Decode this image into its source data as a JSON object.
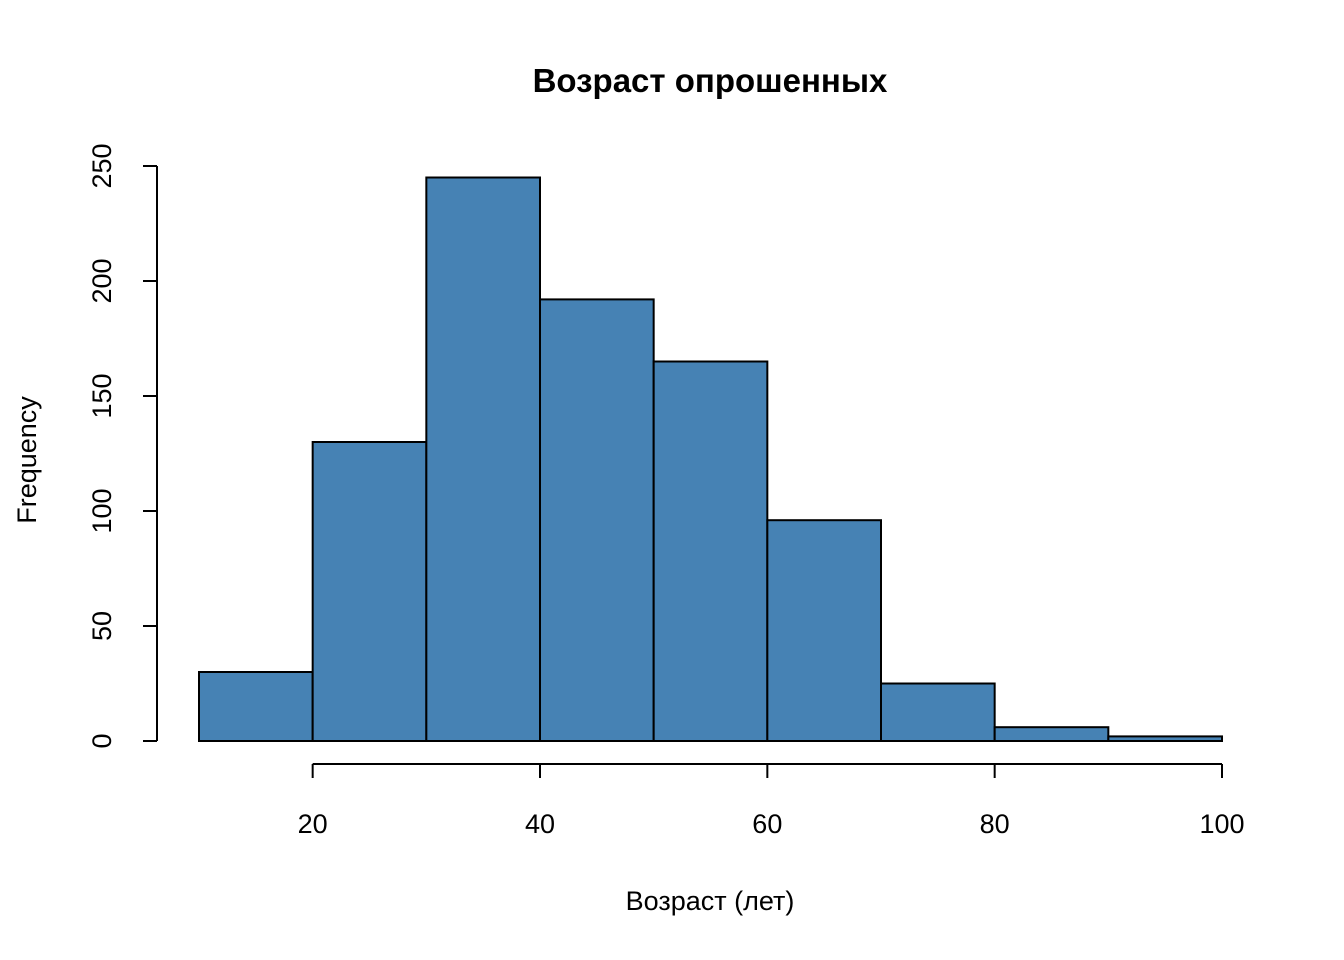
{
  "chart_data": {
    "type": "bar",
    "title": "Возраст опрошенных",
    "xlabel": "Возраст (лет)",
    "ylabel": "Frequency",
    "bins": [
      {
        "start": 10,
        "end": 20,
        "value": 30
      },
      {
        "start": 20,
        "end": 30,
        "value": 130
      },
      {
        "start": 30,
        "end": 40,
        "value": 245
      },
      {
        "start": 40,
        "end": 50,
        "value": 192
      },
      {
        "start": 50,
        "end": 60,
        "value": 165
      },
      {
        "start": 60,
        "end": 70,
        "value": 96
      },
      {
        "start": 70,
        "end": 80,
        "value": 25
      },
      {
        "start": 80,
        "end": 90,
        "value": 6
      },
      {
        "start": 90,
        "end": 100,
        "value": 2
      }
    ],
    "x_ticks": [
      20,
      40,
      60,
      80,
      100
    ],
    "x_tick_labels": [
      "20",
      "40",
      "60",
      "80",
      "100"
    ],
    "y_ticks": [
      0,
      50,
      100,
      150,
      200,
      250
    ],
    "y_tick_labels": [
      "0",
      "50",
      "100",
      "150",
      "200",
      "250"
    ],
    "xlim": [
      10,
      100
    ],
    "ylim": [
      0,
      250
    ],
    "bar_color": "#4682B4",
    "grid": false,
    "legend": "none"
  }
}
